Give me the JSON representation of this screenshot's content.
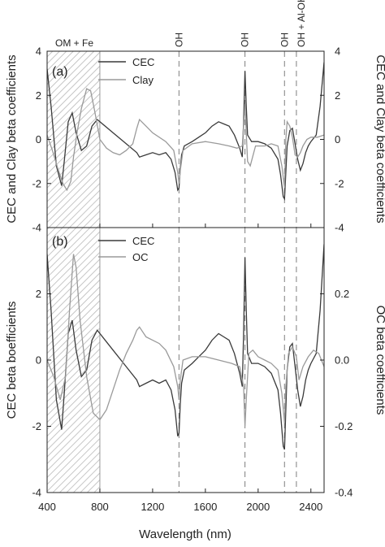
{
  "chart_data": [
    {
      "panel": "(a)",
      "type": "line",
      "xlabel": "Wavelength (nm)",
      "ylabel_left": "CEC and Clay beta coefficients",
      "ylabel_right": "CEC and Clay beta coefficients",
      "xlim": [
        400,
        2500
      ],
      "ylim_left": [
        -4,
        4
      ],
      "ylim_right": [
        -4,
        4
      ],
      "xticks": [
        400,
        800,
        1200,
        1600,
        2000,
        2400
      ],
      "yticks_left": [
        -4,
        -2,
        0,
        2,
        4
      ],
      "yticks_right": [
        -4,
        -2,
        0,
        2,
        4
      ],
      "shaded_region": {
        "x": [
          400,
          800
        ],
        "label": "OM + Fe"
      },
      "vlines": [
        {
          "x": 1400,
          "label": "OH"
        },
        {
          "x": 1900,
          "label": "OH"
        },
        {
          "x": 2200,
          "label": "OH"
        },
        {
          "x": 2290,
          "label": "OH + Al-OH"
        }
      ],
      "legend": "top-left",
      "series": [
        {
          "name": "CEC",
          "color": "#3a3a3a",
          "x": [
            400,
            430,
            470,
            510,
            530,
            560,
            590,
            620,
            660,
            700,
            740,
            780,
            800,
            900,
            1000,
            1080,
            1100,
            1150,
            1200,
            1250,
            1300,
            1340,
            1370,
            1390,
            1400,
            1410,
            1420,
            1440,
            1500,
            1550,
            1600,
            1650,
            1700,
            1740,
            1780,
            1820,
            1860,
            1880,
            1890,
            1900,
            1910,
            1920,
            1950,
            2000,
            2050,
            2100,
            2150,
            2170,
            2190,
            2200,
            2210,
            2220,
            2240,
            2260,
            2280,
            2300,
            2320,
            2340,
            2360,
            2380,
            2400,
            2440,
            2470,
            2500
          ],
          "y": [
            3.2,
            1.5,
            -1.2,
            -2.1,
            -1.0,
            0.8,
            1.2,
            0.3,
            -0.5,
            -0.3,
            0.6,
            0.9,
            0.8,
            0.3,
            -0.2,
            -0.6,
            -0.8,
            -0.7,
            -0.6,
            -0.7,
            -0.6,
            -0.9,
            -1.5,
            -2.3,
            -2.2,
            -1.3,
            -0.7,
            -0.3,
            -0.1,
            0.1,
            0.3,
            0.6,
            0.8,
            0.7,
            0.6,
            0.2,
            -0.4,
            -0.8,
            0.8,
            3.1,
            1.5,
            0.2,
            -0.1,
            -0.1,
            -0.2,
            -0.4,
            -0.9,
            -1.6,
            -2.6,
            -2.7,
            -1.5,
            -0.3,
            0.4,
            0.5,
            -0.2,
            -0.9,
            -1.4,
            -1.1,
            -0.6,
            -0.3,
            -0.1,
            0.2,
            1.5,
            3.5
          ]
        },
        {
          "name": "Clay",
          "color": "#9a9a9a",
          "x": [
            400,
            440,
            480,
            520,
            550,
            580,
            600,
            630,
            660,
            700,
            730,
            760,
            800,
            850,
            900,
            950,
            1000,
            1050,
            1080,
            1100,
            1150,
            1200,
            1300,
            1360,
            1390,
            1400,
            1410,
            1430,
            1500,
            1600,
            1700,
            1780,
            1840,
            1880,
            1900,
            1910,
            1920,
            1940,
            1980,
            2050,
            2100,
            2150,
            2180,
            2200,
            2210,
            2220,
            2240,
            2260,
            2280,
            2300,
            2320,
            2340,
            2370,
            2400,
            2450,
            2500
          ],
          "y": [
            0.2,
            -0.5,
            -1.3,
            -2.0,
            -2.3,
            -1.9,
            -0.8,
            0.4,
            1.4,
            2.3,
            2.2,
            1.3,
            0.0,
            -0.4,
            -0.6,
            -0.7,
            -0.5,
            -0.2,
            0.5,
            0.9,
            0.6,
            0.3,
            -0.1,
            -0.5,
            -1.5,
            -2.0,
            -1.4,
            -0.5,
            -0.2,
            -0.1,
            -0.2,
            -0.3,
            -0.4,
            -0.3,
            1.6,
            0.3,
            -1.0,
            -1.2,
            -0.3,
            -0.3,
            -0.2,
            -0.3,
            -1.2,
            -2.2,
            0.0,
            0.8,
            0.6,
            0.1,
            -0.7,
            -0.8,
            -0.6,
            -0.3,
            0.0,
            0.1,
            0.1,
            0.2
          ]
        }
      ]
    },
    {
      "panel": "(b)",
      "type": "line",
      "xlabel": "Wavelength (nm)",
      "ylabel_left": "CEC beta boefficients",
      "ylabel_right": "OC beta coefficients",
      "xlim": [
        400,
        2500
      ],
      "ylim_left": [
        -4,
        4
      ],
      "ylim_right": [
        -0.4,
        0.4
      ],
      "xticks": [
        400,
        800,
        1200,
        1600,
        2000,
        2400
      ],
      "yticks_left": [
        -4,
        -2,
        0,
        2
      ],
      "yticks_right": [
        -0.4,
        -0.2,
        0.0,
        0.2
      ],
      "shaded_region": {
        "x": [
          400,
          800
        ],
        "label": ""
      },
      "vlines": [
        {
          "x": 1400,
          "label": ""
        },
        {
          "x": 1900,
          "label": ""
        },
        {
          "x": 2200,
          "label": ""
        },
        {
          "x": 2290,
          "label": ""
        }
      ],
      "legend": "top-left",
      "series": [
        {
          "name": "CEC",
          "color": "#3a3a3a",
          "axis": "left",
          "x": [
            400,
            430,
            470,
            510,
            530,
            560,
            590,
            620,
            660,
            700,
            740,
            780,
            800,
            900,
            1000,
            1080,
            1100,
            1150,
            1200,
            1250,
            1300,
            1340,
            1370,
            1390,
            1400,
            1410,
            1420,
            1440,
            1500,
            1550,
            1600,
            1650,
            1700,
            1740,
            1780,
            1820,
            1860,
            1880,
            1890,
            1900,
            1910,
            1920,
            1950,
            2000,
            2050,
            2100,
            2150,
            2170,
            2190,
            2200,
            2210,
            2220,
            2240,
            2260,
            2280,
            2300,
            2320,
            2340,
            2360,
            2380,
            2400,
            2440,
            2470,
            2500
          ],
          "y": [
            3.2,
            1.5,
            -1.2,
            -2.1,
            -1.0,
            0.8,
            1.2,
            0.3,
            -0.5,
            -0.3,
            0.6,
            0.9,
            0.8,
            0.3,
            -0.2,
            -0.6,
            -0.8,
            -0.7,
            -0.6,
            -0.7,
            -0.6,
            -0.9,
            -1.5,
            -2.3,
            -2.2,
            -1.3,
            -0.7,
            -0.3,
            -0.1,
            0.1,
            0.3,
            0.6,
            0.8,
            0.7,
            0.6,
            0.2,
            -0.4,
            -0.8,
            0.8,
            3.1,
            1.5,
            0.2,
            -0.1,
            -0.1,
            -0.2,
            -0.4,
            -0.9,
            -1.6,
            -2.6,
            -2.7,
            -1.5,
            -0.3,
            0.4,
            0.5,
            -0.2,
            -0.9,
            -1.4,
            -1.1,
            -0.6,
            -0.3,
            -0.1,
            0.2,
            1.5,
            3.5
          ]
        },
        {
          "name": "OC",
          "color": "#9a9a9a",
          "axis": "right",
          "x": [
            400,
            450,
            500,
            540,
            570,
            600,
            620,
            650,
            700,
            750,
            800,
            850,
            900,
            950,
            1000,
            1050,
            1080,
            1100,
            1150,
            1250,
            1300,
            1360,
            1390,
            1400,
            1410,
            1430,
            1500,
            1600,
            1700,
            1800,
            1860,
            1890,
            1900,
            1910,
            1930,
            1960,
            2000,
            2050,
            2100,
            2150,
            2180,
            2200,
            2210,
            2230,
            2260,
            2290,
            2310,
            2340,
            2380,
            2420,
            2460,
            2500
          ],
          "y": [
            0.0,
            -0.05,
            -0.12,
            -0.05,
            0.15,
            0.32,
            0.28,
            0.12,
            -0.05,
            -0.16,
            -0.18,
            -0.15,
            -0.09,
            -0.03,
            0.02,
            0.06,
            0.09,
            0.1,
            0.07,
            0.05,
            0.03,
            -0.02,
            -0.08,
            -0.12,
            -0.06,
            0.0,
            0.01,
            0.01,
            0.0,
            -0.01,
            -0.02,
            -0.08,
            -0.2,
            -0.12,
            0.02,
            0.03,
            0.01,
            0.0,
            -0.01,
            -0.03,
            -0.1,
            -0.19,
            -0.08,
            0.02,
            0.04,
            0.01,
            -0.06,
            -0.02,
            0.01,
            0.03,
            0.02,
            -0.02
          ]
        }
      ]
    }
  ]
}
